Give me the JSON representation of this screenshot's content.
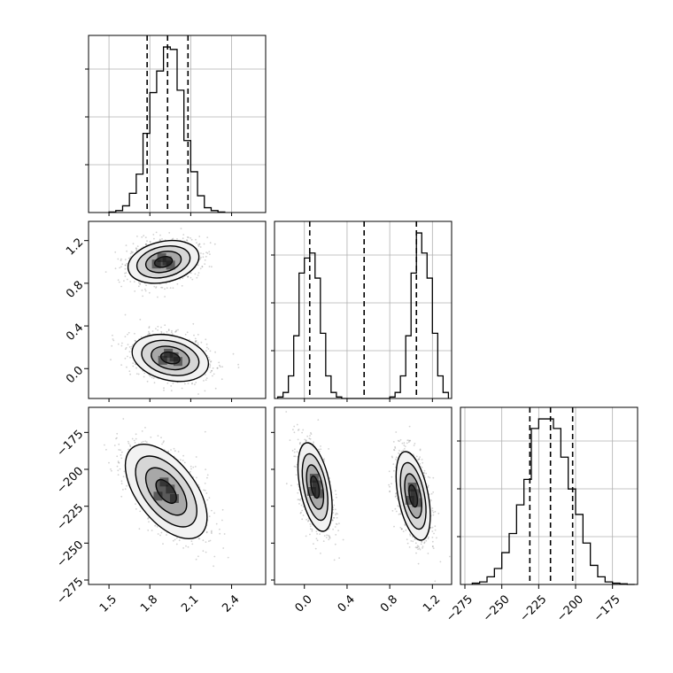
{
  "chart_data": {
    "type": "corner",
    "title": "",
    "parameters": [
      "",
      "",
      ""
    ],
    "grid": true,
    "colors": {
      "line": "#000000",
      "grid": "#b0b0b0",
      "scatter": "#7f7f7f",
      "background": "#ffffff"
    },
    "axes": [
      {
        "range": [
          1.35,
          2.65
        ],
        "ticks": [
          1.5,
          1.8,
          2.1,
          2.4
        ],
        "tick_labels": [
          "1.5",
          "1.8",
          "2.1",
          "2.4"
        ]
      },
      {
        "range": [
          -0.28,
          1.38
        ],
        "ticks": [
          0.0,
          0.4,
          0.8,
          1.2
        ],
        "tick_labels": [
          "0.0",
          "0.4",
          "0.8",
          "1.2"
        ]
      },
      {
        "range": [
          -278,
          -158
        ],
        "ticks": [
          -275,
          -250,
          -225,
          -200,
          -175
        ],
        "tick_labels": [
          "−275",
          "−250",
          "−225",
          "−200",
          "−175"
        ]
      }
    ],
    "marginals": [
      {
        "param": 0,
        "quantiles": [
          1.78,
          1.93,
          2.08
        ],
        "bin_edges": [
          1.5,
          1.55,
          1.6,
          1.65,
          1.7,
          1.75,
          1.8,
          1.85,
          1.9,
          1.95,
          2.0,
          2.05,
          2.1,
          2.15,
          2.2,
          2.25,
          2.3,
          2.35
        ],
        "counts": [
          1,
          4,
          14,
          40,
          80,
          165,
          250,
          295,
          345,
          340,
          255,
          150,
          85,
          35,
          10,
          4,
          1
        ]
      },
      {
        "param": 1,
        "quantiles": [
          0.05,
          0.56,
          1.05
        ],
        "bin_edges": [
          -0.25,
          -0.2,
          -0.15,
          -0.1,
          -0.05,
          0.0,
          0.05,
          0.1,
          0.15,
          0.2,
          0.25,
          0.3,
          0.35,
          0.4,
          0.45,
          0.5,
          0.55,
          0.6,
          0.65,
          0.7,
          0.75,
          0.8,
          0.85,
          0.9,
          0.95,
          1.0,
          1.05,
          1.1,
          1.15,
          1.2,
          1.25,
          1.3,
          1.35
        ],
        "counts": [
          3,
          12,
          45,
          125,
          250,
          280,
          290,
          240,
          130,
          45,
          12,
          3,
          0,
          0,
          0,
          0,
          0,
          0,
          0,
          0,
          0,
          3,
          12,
          45,
          125,
          250,
          330,
          290,
          240,
          130,
          45,
          12
        ]
      },
      {
        "param": 2,
        "quantiles": [
          -231,
          -217,
          -202
        ],
        "bin_edges": [
          -270,
          -265,
          -260,
          -255,
          -250,
          -245,
          -240,
          -235,
          -230,
          -225,
          -220,
          -215,
          -210,
          -205,
          -200,
          -195,
          -190,
          -185,
          -180,
          -175,
          -170,
          -165,
          -160
        ],
        "counts": [
          2,
          4,
          12,
          25,
          50,
          80,
          125,
          165,
          245,
          260,
          260,
          245,
          200,
          150,
          110,
          65,
          30,
          12,
          4,
          2,
          1,
          0
        ]
      }
    ],
    "joints": [
      {
        "x": 0,
        "y": 1,
        "modes": [
          {
            "center": [
              1.9,
              1.0
            ],
            "sigma_x": 0.13,
            "sigma_y": 0.1,
            "rho": 0.25,
            "weight": 0.5
          },
          {
            "center": [
              1.95,
              0.1
            ],
            "sigma_x": 0.14,
            "sigma_y": 0.11,
            "rho": -0.25,
            "weight": 0.5
          }
        ]
      },
      {
        "x": 0,
        "y": 2,
        "modes": [
          {
            "center": [
              1.92,
              -215
            ],
            "sigma_x": 0.15,
            "sigma_y": 16,
            "rho": -0.55,
            "weight": 1.0
          }
        ]
      },
      {
        "x": 1,
        "y": 2,
        "modes": [
          {
            "center": [
              0.1,
              -212
            ],
            "sigma_x": 0.08,
            "sigma_y": 15,
            "rho": -0.45,
            "weight": 0.5
          },
          {
            "center": [
              1.02,
              -218
            ],
            "sigma_x": 0.08,
            "sigma_y": 15,
            "rho": -0.45,
            "weight": 0.5
          }
        ]
      }
    ],
    "contour_levels": [
      0.5,
      1.0,
      1.5,
      2.0
    ],
    "scatter_points_per_mode": 1100
  }
}
